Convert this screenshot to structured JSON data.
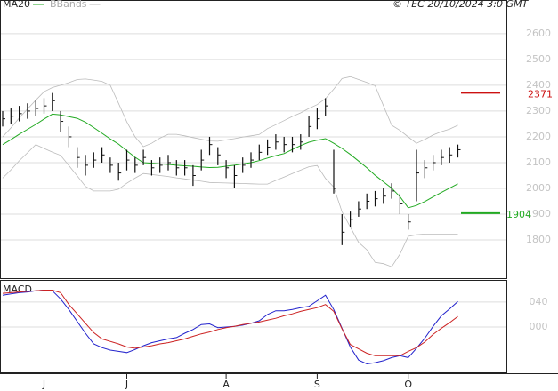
{
  "chart_data": [
    {
      "type": "ohlc",
      "source": "© TEC 20/10/2024 3:0 GMT",
      "categories": [
        null,
        null,
        null,
        null,
        null,
        "J",
        null,
        null,
        null,
        null,
        null,
        null,
        null,
        null,
        null,
        "J",
        null,
        null,
        null,
        null,
        null,
        null,
        null,
        null,
        null,
        null,
        null,
        "A",
        null,
        null,
        null,
        null,
        null,
        null,
        null,
        null,
        null,
        null,
        "S",
        null,
        null,
        null,
        null,
        null,
        null,
        null,
        null,
        null,
        null,
        "O",
        null,
        null,
        null,
        null,
        null,
        null
      ],
      "high": [
        2300,
        2310,
        2320,
        2330,
        2340,
        2350,
        2370,
        2300,
        2240,
        2160,
        2130,
        2140,
        2160,
        2120,
        2100,
        2150,
        2120,
        2150,
        2110,
        2120,
        2130,
        2110,
        2110,
        2090,
        2150,
        2200,
        2160,
        2110,
        2090,
        2120,
        2140,
        2170,
        2190,
        2210,
        2200,
        2200,
        2210,
        2280,
        2310,
        2350,
        2150,
        1900,
        1910,
        1950,
        1980,
        1990,
        2000,
        2020,
        1980,
        1900,
        2150,
        2110,
        2130,
        2150,
        2160,
        2170
      ],
      "low": [
        2240,
        2250,
        2260,
        2270,
        2280,
        2290,
        2300,
        2220,
        2160,
        2080,
        2050,
        2080,
        2100,
        2060,
        2030,
        2070,
        2060,
        2090,
        2050,
        2060,
        2070,
        2050,
        2050,
        2010,
        2070,
        2130,
        2090,
        2040,
        2000,
        2060,
        2080,
        2110,
        2130,
        2150,
        2140,
        2140,
        2150,
        2200,
        2230,
        2280,
        1980,
        1780,
        1850,
        1890,
        1920,
        1930,
        1940,
        1960,
        1900,
        1840,
        1950,
        2040,
        2070,
        2090,
        2100,
        2120
      ],
      "close": [
        2270,
        2280,
        2290,
        2300,
        2310,
        2320,
        2340,
        2260,
        2200,
        2120,
        2090,
        2110,
        2130,
        2090,
        2060,
        2110,
        2090,
        2120,
        2080,
        2090,
        2100,
        2080,
        2080,
        2050,
        2110,
        2170,
        2130,
        2080,
        2050,
        2090,
        2110,
        2140,
        2160,
        2180,
        2170,
        2170,
        2180,
        2240,
        2270,
        2320,
        2000,
        1830,
        1880,
        1920,
        1950,
        1960,
        1970,
        1990,
        1940,
        1870,
        2060,
        2080,
        2100,
        2120,
        2130,
        2150
      ],
      "color": "#111111",
      "series": [
        {
          "name": "MA20",
          "color": "#22aa22",
          "values": [
            2170,
            2189,
            2210,
            2229,
            2248,
            2269,
            2288,
            2285,
            2278,
            2272,
            2257,
            2236,
            2214,
            2192,
            2172,
            2146,
            2121,
            2100,
            2098,
            2095,
            2093,
            2090,
            2088,
            2086,
            2083,
            2081,
            2082,
            2086,
            2090,
            2095,
            2100,
            2108,
            2118,
            2127,
            2135,
            2151,
            2166,
            2179,
            2187,
            2193,
            2175,
            2155,
            2132,
            2106,
            2080,
            2051,
            2026,
            2001,
            1968,
            1925,
            1934,
            1949,
            1967,
            1984,
            2001,
            2018
          ]
        },
        {
          "name": "BBands",
          "color": "#bbbbbb",
          "upper": [
            2200,
            2235,
            2273,
            2308,
            2342,
            2375,
            2391,
            2400,
            2410,
            2422,
            2424,
            2420,
            2415,
            2400,
            2330,
            2258,
            2200,
            2162,
            2175,
            2195,
            2210,
            2210,
            2204,
            2197,
            2191,
            2184,
            2183,
            2188,
            2193,
            2199,
            2204,
            2209,
            2232,
            2247,
            2263,
            2279,
            2293,
            2310,
            2325,
            2348,
            2385,
            2426,
            2433,
            2422,
            2411,
            2398,
            2321,
            2245,
            2225,
            2200,
            2175,
            2190,
            2207,
            2220,
            2230,
            2245
          ],
          "lower": [
            2040,
            2072,
            2107,
            2138,
            2170,
            2155,
            2141,
            2128,
            2089,
            2049,
            2008,
            1990,
            1990,
            1990,
            1997,
            2020,
            2040,
            2058,
            2054,
            2050,
            2046,
            2041,
            2037,
            2032,
            2028,
            2023,
            2022,
            2021,
            2020,
            2019,
            2018,
            2017,
            2017,
            2031,
            2044,
            2058,
            2071,
            2084,
            2089,
            2039,
            2005,
            1909,
            1850,
            1791,
            1762,
            1713,
            1708,
            1696,
            1745,
            1814,
            1820,
            1823,
            1823,
            1823,
            1823,
            1823
          ]
        }
      ],
      "levels": [
        {
          "value": 2371,
          "color": "#cc1111"
        },
        {
          "value": 1904,
          "color": "#22aa22"
        }
      ],
      "ylim": [
        1652,
        2727
      ],
      "yticks": [
        1800,
        1900,
        2000,
        2100,
        2200,
        2300,
        2400,
        2500,
        2600
      ],
      "grid": true
    },
    {
      "type": "line",
      "title": "MACD",
      "series": [
        {
          "color": "#2222cc",
          "values": [
            51,
            53,
            55,
            56,
            58,
            59,
            58,
            45,
            28,
            9,
            -10,
            -27,
            -33,
            -37,
            -39,
            -41,
            -36,
            -30,
            -25,
            -22,
            -19,
            -17,
            -10,
            -4,
            4,
            5,
            -1,
            0,
            1,
            3,
            6,
            10,
            20,
            26,
            26,
            28,
            31,
            33,
            42,
            51,
            28,
            -2,
            -32,
            -53,
            -59,
            -57,
            -54,
            -49,
            -46,
            -49,
            -34,
            -18,
            1,
            18,
            29,
            41
          ]
        },
        {
          "color": "#cc2222",
          "values": [
            54,
            55,
            56,
            57,
            58,
            59,
            59,
            55,
            36,
            21,
            6,
            -9,
            -19,
            -23,
            -27,
            -32,
            -34,
            -32,
            -30,
            -27,
            -25,
            -22,
            -19,
            -15,
            -11,
            -8,
            -4,
            -1,
            1,
            4,
            6,
            8,
            11,
            14,
            18,
            21,
            25,
            28,
            31,
            36,
            25,
            -3,
            -28,
            -35,
            -42,
            -46,
            -46,
            -46,
            -46,
            -39,
            -33,
            -24,
            -12,
            -2,
            7,
            17
          ]
        }
      ],
      "ylim": [
        -74,
        74
      ],
      "yticks": [
        {
          "value": 40,
          "label": "040"
        },
        {
          "value": 0,
          "label": "000"
        }
      ],
      "grid": true
    }
  ]
}
